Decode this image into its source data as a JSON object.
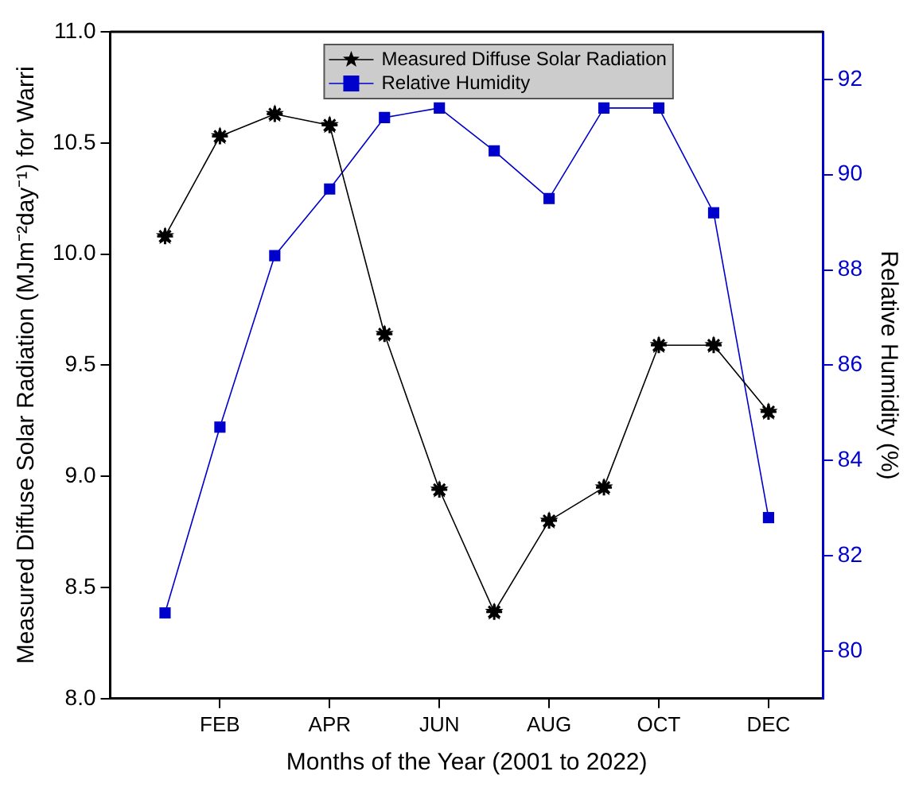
{
  "chart_data": {
    "type": "line",
    "xlabel": "Months of the Year (2001 to 2022)",
    "ylabel": "Measured Diffuse Solar Radiation (MJm⁻²day⁻¹) for Warri",
    "y2label": "Relative Humidity (%)",
    "categories": [
      null,
      "FEB",
      null,
      "APR",
      null,
      "JUN",
      null,
      "AUG",
      null,
      "OCT",
      null,
      "DEC"
    ],
    "ylim": [
      8,
      11
    ],
    "yticks": [
      {
        "value": 8,
        "label": "8.0"
      },
      {
        "value": 8.5,
        "label": "8.5"
      },
      {
        "value": 9,
        "label": "9.0"
      },
      {
        "value": 9.5,
        "label": "9.5"
      },
      {
        "value": 10,
        "label": "10.0"
      },
      {
        "value": 10.5,
        "label": "10.5"
      },
      {
        "value": 11,
        "label": "11.0"
      }
    ],
    "y2lim": [
      79,
      93
    ],
    "y2ticks": [
      80,
      82,
      84,
      86,
      88,
      90,
      92
    ],
    "series": [
      {
        "name": "Measured Diffuse Solar Radiation",
        "color": "#000000",
        "marker": "star",
        "values": [
          10.08,
          10.53,
          10.63,
          10.58,
          9.64,
          8.94,
          8.39,
          8.8,
          8.95,
          9.59,
          9.59,
          9.29
        ]
      },
      {
        "name": "Relative Humidity",
        "color": "#0000cc",
        "marker": "square",
        "axis": "y2",
        "values": [
          80.8,
          84.7,
          88.3,
          89.7,
          91.2,
          91.4,
          90.5,
          89.5,
          91.4,
          91.4,
          89.2,
          82.8
        ]
      }
    ],
    "grid": false,
    "legend": "top",
    "line_style": "solid"
  }
}
